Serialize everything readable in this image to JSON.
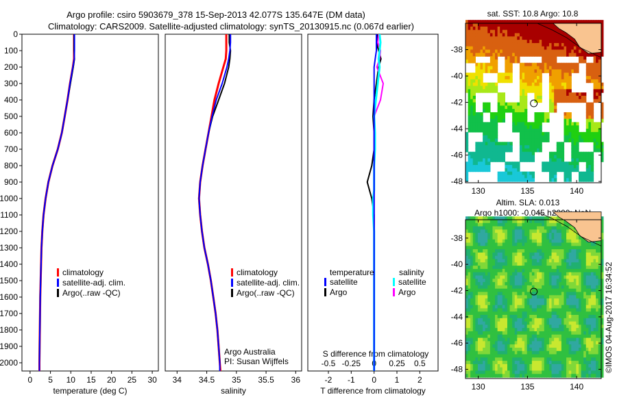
{
  "title": {
    "line1": "Argo profile: csiro 5903679_378 15-Sep-2013 42.077S 135.647E (DM data)",
    "line2": "Climatology: CARS2009. Satellite-adjusted climatology: synTS_20130915.nc (0.067d earlier)"
  },
  "credit": "©IMOS 04-Aug-2017 16:34:52",
  "colors": {
    "climatology": "#ff0000",
    "satellite_t": "#0000ff",
    "argo_t": "#000000",
    "satellite_s": "#00ffff",
    "argo_s": "#ff00ff"
  },
  "chart_data": [
    {
      "type": "line",
      "name": "temperature-profile",
      "xlabel": "temperature (deg C)",
      "xlim": [
        -2,
        31.5
      ],
      "xticks": [
        0,
        5,
        10,
        15,
        20,
        25,
        30
      ],
      "ylim": [
        0,
        2050
      ],
      "yticks": [
        0,
        100,
        200,
        300,
        400,
        500,
        600,
        700,
        800,
        900,
        1000,
        1100,
        1200,
        1300,
        1400,
        1500,
        1600,
        1700,
        1800,
        1900,
        2000
      ],
      "legend": [
        "climatology",
        "satellite-adj. clim.",
        "Argo(..raw -QC)"
      ],
      "depth": [
        0,
        50,
        100,
        150,
        200,
        300,
        400,
        500,
        600,
        700,
        800,
        900,
        1000,
        1100,
        1200,
        1300,
        1400,
        1500,
        1600,
        1700,
        1800,
        1900,
        2000,
        2050
      ],
      "series": [
        {
          "name": "climatology",
          "values": [
            10.8,
            10.8,
            10.8,
            10.8,
            10.5,
            9.8,
            9.2,
            8.5,
            7.8,
            6.8,
            5.5,
            4.5,
            3.8,
            3.3,
            3.0,
            2.8,
            2.7,
            2.6,
            2.5,
            2.45,
            2.4,
            2.35,
            2.3,
            2.3
          ]
        },
        {
          "name": "satellite-adj. clim.",
          "values": [
            10.9,
            10.9,
            10.9,
            10.85,
            10.5,
            9.8,
            9.2,
            8.5,
            7.8,
            6.8,
            5.5,
            4.5,
            3.8,
            3.3,
            3.0,
            2.8,
            2.7,
            2.6,
            2.5,
            2.45,
            2.4,
            2.35,
            2.3,
            2.3
          ]
        },
        {
          "name": "Argo(..raw -QC)",
          "values": [
            10.8,
            10.8,
            10.8,
            10.9,
            10.6,
            9.9,
            9.2,
            8.5,
            7.8,
            6.8,
            5.5,
            4.5,
            3.8,
            3.3,
            3.0,
            2.8,
            2.7,
            2.6,
            2.5,
            2.45,
            2.4,
            2.35,
            2.3,
            null
          ]
        }
      ]
    },
    {
      "type": "line",
      "name": "salinity-profile",
      "xlabel": "salinity",
      "xlim": [
        33.8,
        36.1
      ],
      "xticks": [
        34,
        34.5,
        35,
        35.5,
        36
      ],
      "ylim": [
        0,
        2050
      ],
      "legend": [
        "climatology",
        "satellite-adj. clim.",
        "Argo(..raw -QC)"
      ],
      "annotation": [
        "Argo Australia",
        "PI: Susan Wijffels"
      ],
      "depth": [
        0,
        50,
        100,
        150,
        200,
        300,
        400,
        500,
        600,
        700,
        800,
        900,
        1000,
        1100,
        1200,
        1300,
        1400,
        1500,
        1600,
        1700,
        1800,
        1900,
        2000,
        2050
      ],
      "series": [
        {
          "name": "climatology",
          "values": [
            34.83,
            34.83,
            34.83,
            34.82,
            34.78,
            34.7,
            34.63,
            34.58,
            34.53,
            34.48,
            34.43,
            34.39,
            34.37,
            34.39,
            34.42,
            34.46,
            34.52,
            34.57,
            34.61,
            34.65,
            34.68,
            34.7,
            34.72,
            34.73
          ]
        },
        {
          "name": "satellite-adj. clim.",
          "values": [
            34.9,
            34.9,
            34.89,
            34.87,
            34.84,
            34.76,
            34.66,
            34.59,
            34.53,
            34.48,
            34.43,
            34.39,
            34.37,
            34.39,
            34.42,
            34.46,
            34.52,
            34.57,
            34.61,
            34.65,
            34.68,
            34.7,
            34.72,
            34.72
          ]
        },
        {
          "name": "Argo(..raw -QC)",
          "values": [
            34.88,
            34.88,
            34.9,
            34.89,
            34.87,
            34.8,
            34.7,
            34.6,
            34.53,
            34.48,
            34.43,
            34.39,
            34.37,
            34.39,
            34.42,
            34.46,
            34.52,
            34.57,
            34.61,
            34.65,
            34.68,
            34.7,
            34.72,
            null
          ]
        }
      ]
    },
    {
      "type": "line",
      "name": "difference-profile",
      "xlabel": "T difference from climatology",
      "xlabel_top": "S difference from climatology",
      "xlim": [
        -2.9,
        2.8
      ],
      "xticks": [
        -2,
        -1,
        0,
        1,
        2
      ],
      "xticks_s": [
        -0.5,
        -0.25,
        0,
        0.25,
        0.5
      ],
      "ylim": [
        0,
        2050
      ],
      "legend": {
        "t_header": "temperature",
        "s_header": "salinity",
        "satellite": "satellite",
        "argo": "Argo"
      },
      "depth": [
        0,
        50,
        100,
        150,
        200,
        300,
        400,
        500,
        600,
        700,
        800,
        850,
        900,
        950,
        1000,
        1100,
        1200,
        1400,
        1600,
        1800,
        2000,
        2050
      ],
      "series": [
        {
          "name": "temperature satellite",
          "values": [
            0.1,
            0.1,
            0.1,
            0.05,
            0,
            0,
            0,
            0,
            0,
            0,
            0,
            0,
            0,
            0,
            0,
            0,
            0,
            0,
            0,
            0,
            0,
            0
          ]
        },
        {
          "name": "temperature Argo",
          "values": [
            0.15,
            0.1,
            0.2,
            0.3,
            0.2,
            0.1,
            0,
            -0.05,
            0,
            0,
            -0.1,
            -0.2,
            -0.3,
            -0.2,
            -0.1,
            0,
            0,
            0,
            0,
            0,
            0,
            null
          ]
        },
        {
          "name": "salinity satellite",
          "values": [
            0.06,
            0.07,
            0.06,
            0.05,
            0.06,
            0.04,
            0.02,
            0,
            0.01,
            0.01,
            0,
            0,
            0,
            0,
            -0.01,
            -0.01,
            0,
            0,
            0,
            0,
            0,
            0
          ]
        },
        {
          "name": "salinity Argo",
          "values": [
            0.05,
            0.04,
            0.07,
            0.06,
            0.03,
            0.1,
            0.07,
            0,
            0,
            0,
            0,
            0,
            0,
            0,
            0,
            0,
            0,
            0,
            0,
            0,
            0,
            null
          ]
        }
      ]
    },
    {
      "type": "heatmap",
      "name": "sst-map",
      "title": "sat. SST: 10.8 Argo: 10.8",
      "xticks": [
        130,
        135,
        140
      ],
      "yticks": [
        -38,
        -40,
        -42,
        -44,
        -46,
        -48
      ],
      "xlim": [
        128.7,
        142.5
      ],
      "ylim": [
        -48.1,
        -36.0
      ],
      "argo_position": [
        135.647,
        -42.077
      ]
    },
    {
      "type": "heatmap",
      "name": "sla-map",
      "title_lines": [
        "Altim. SLA: 0.013",
        "Argo h1000: -0.045 h2000: NaN"
      ],
      "xticks": [
        130,
        135,
        140
      ],
      "yticks": [
        -38,
        -40,
        -42,
        -44,
        -46,
        -48
      ],
      "xlim": [
        128.7,
        142.5
      ],
      "ylim": [
        -48.7,
        -36.6
      ],
      "argo_position": [
        135.647,
        -42.077
      ]
    }
  ]
}
